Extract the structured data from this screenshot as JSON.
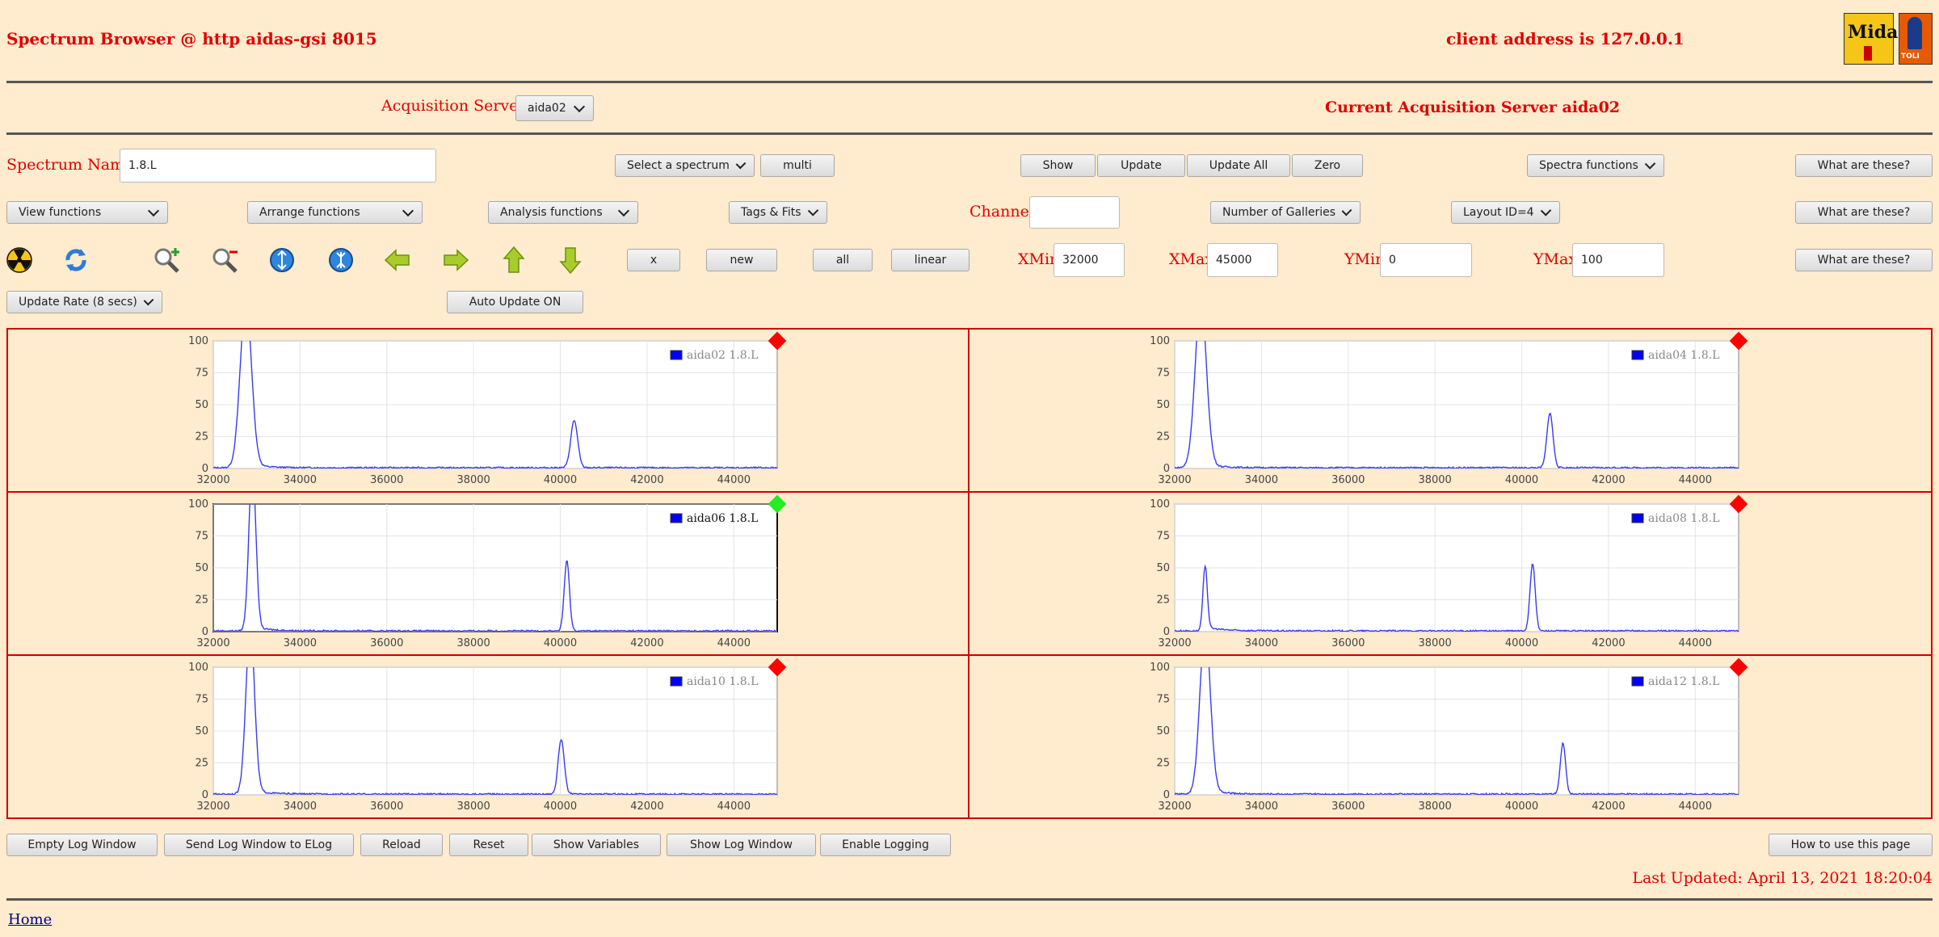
{
  "header": {
    "title": "Spectrum Browser @ http aidas-gsi 8015",
    "client": "client address is 127.0.0.1",
    "logo1": "Midas",
    "logo2": "TOLI"
  },
  "acq": {
    "label": "Acquisition Servers",
    "selected": "aida02",
    "current": "Current Acquisition Server aida02"
  },
  "row1": {
    "spectrum_label": "Spectrum Name:",
    "spectrum_value": "1.8.L",
    "select_spectrum": "Select a spectrum",
    "multi": "multi",
    "show": "Show",
    "update": "Update",
    "update_all": "Update All",
    "zero": "Zero",
    "spectra_functions": "Spectra functions",
    "what": "What are these?"
  },
  "row2": {
    "view": "View functions",
    "arrange": "Arrange functions",
    "analysis": "Analysis functions",
    "tags": "Tags & Fits",
    "channel_label": "Channel:",
    "channel_value": "",
    "galleries": "Number of Galleries",
    "layout": "Layout ID=4",
    "what": "What are these?"
  },
  "row3": {
    "icons": [
      "radiation-icon",
      "refresh-icon",
      "zoom-in-icon",
      "zoom-out-icon",
      "expand-vertical-icon",
      "compress-vertical-icon",
      "arrow-left-icon",
      "arrow-right-icon",
      "arrow-up-icon",
      "arrow-down-icon"
    ],
    "x": "x",
    "new": "new",
    "all": "all",
    "linear": "linear",
    "xmin_label": "XMin",
    "xmin": "32000",
    "xmax_label": "XMax",
    "xmax": "45000",
    "ymin_label": "YMin",
    "ymin": "0",
    "ymax_label": "YMax",
    "ymax": "100",
    "what": "What are these?"
  },
  "row4": {
    "update_rate": "Update Rate (8 secs)",
    "auto_update": "Auto Update ON"
  },
  "chart_data": [
    {
      "type": "line",
      "legend": "aida02 1.8.L",
      "status": "red",
      "peaks": [
        {
          "x": 32750,
          "h": 130,
          "w": 130
        },
        {
          "x": 40320,
          "h": 37,
          "w": 80
        }
      ],
      "xlim": [
        32000,
        45000
      ],
      "ylim": [
        0,
        100
      ],
      "xticks": [
        32000,
        34000,
        36000,
        38000,
        40000,
        42000,
        44000
      ],
      "yticks": [
        0,
        25,
        50,
        75,
        100
      ]
    },
    {
      "type": "line",
      "legend": "aida04 1.8.L",
      "status": "red",
      "peaks": [
        {
          "x": 32600,
          "h": 130,
          "w": 130
        },
        {
          "x": 40650,
          "h": 43,
          "w": 70
        }
      ],
      "xlim": [
        32000,
        45000
      ],
      "ylim": [
        0,
        100
      ],
      "xticks": [
        32000,
        34000,
        36000,
        38000,
        40000,
        42000,
        44000
      ],
      "yticks": [
        0,
        25,
        50,
        75,
        100
      ]
    },
    {
      "type": "line",
      "legend": "aida06 1.8.L",
      "status": "green",
      "peaks": [
        {
          "x": 32900,
          "h": 130,
          "w": 80
        },
        {
          "x": 40150,
          "h": 55,
          "w": 60
        }
      ],
      "xlim": [
        32000,
        45000
      ],
      "ylim": [
        0,
        100
      ],
      "xticks": [
        32000,
        34000,
        36000,
        38000,
        40000,
        42000,
        44000
      ],
      "yticks": [
        0,
        25,
        50,
        75,
        100
      ]
    },
    {
      "type": "line",
      "legend": "aida08 1.8.L",
      "status": "red",
      "peaks": [
        {
          "x": 32700,
          "h": 50,
          "w": 50
        },
        {
          "x": 40250,
          "h": 53,
          "w": 60
        }
      ],
      "xlim": [
        32000,
        45000
      ],
      "ylim": [
        0,
        100
      ],
      "xticks": [
        32000,
        34000,
        36000,
        38000,
        40000,
        42000,
        44000
      ],
      "yticks": [
        0,
        25,
        50,
        75,
        100
      ]
    },
    {
      "type": "line",
      "legend": "aida10 1.8.L",
      "status": "red",
      "peaks": [
        {
          "x": 32850,
          "h": 130,
          "w": 100
        },
        {
          "x": 40020,
          "h": 43,
          "w": 70
        }
      ],
      "xlim": [
        32000,
        45000
      ],
      "ylim": [
        0,
        100
      ],
      "xticks": [
        32000,
        34000,
        36000,
        38000,
        40000,
        42000,
        44000
      ],
      "yticks": [
        0,
        25,
        50,
        75,
        100
      ]
    },
    {
      "type": "line",
      "legend": "aida12 1.8.L",
      "status": "red",
      "peaks": [
        {
          "x": 32700,
          "h": 130,
          "w": 120
        },
        {
          "x": 40950,
          "h": 40,
          "w": 60
        }
      ],
      "xlim": [
        32000,
        45000
      ],
      "ylim": [
        0,
        100
      ],
      "xticks": [
        32000,
        34000,
        36000,
        38000,
        40000,
        42000,
        44000
      ],
      "yticks": [
        0,
        25,
        50,
        75,
        100
      ]
    }
  ],
  "footer": {
    "empty_log": "Empty Log Window",
    "send_log": "Send Log Window to ELog",
    "reload": "Reload",
    "reset": "Reset",
    "show_vars": "Show Variables",
    "show_log": "Show Log Window",
    "enable_logging": "Enable Logging",
    "how_to": "How to use this page",
    "last_updated": "Last Updated: April 13, 2021 18:20:04",
    "home": "Home"
  }
}
